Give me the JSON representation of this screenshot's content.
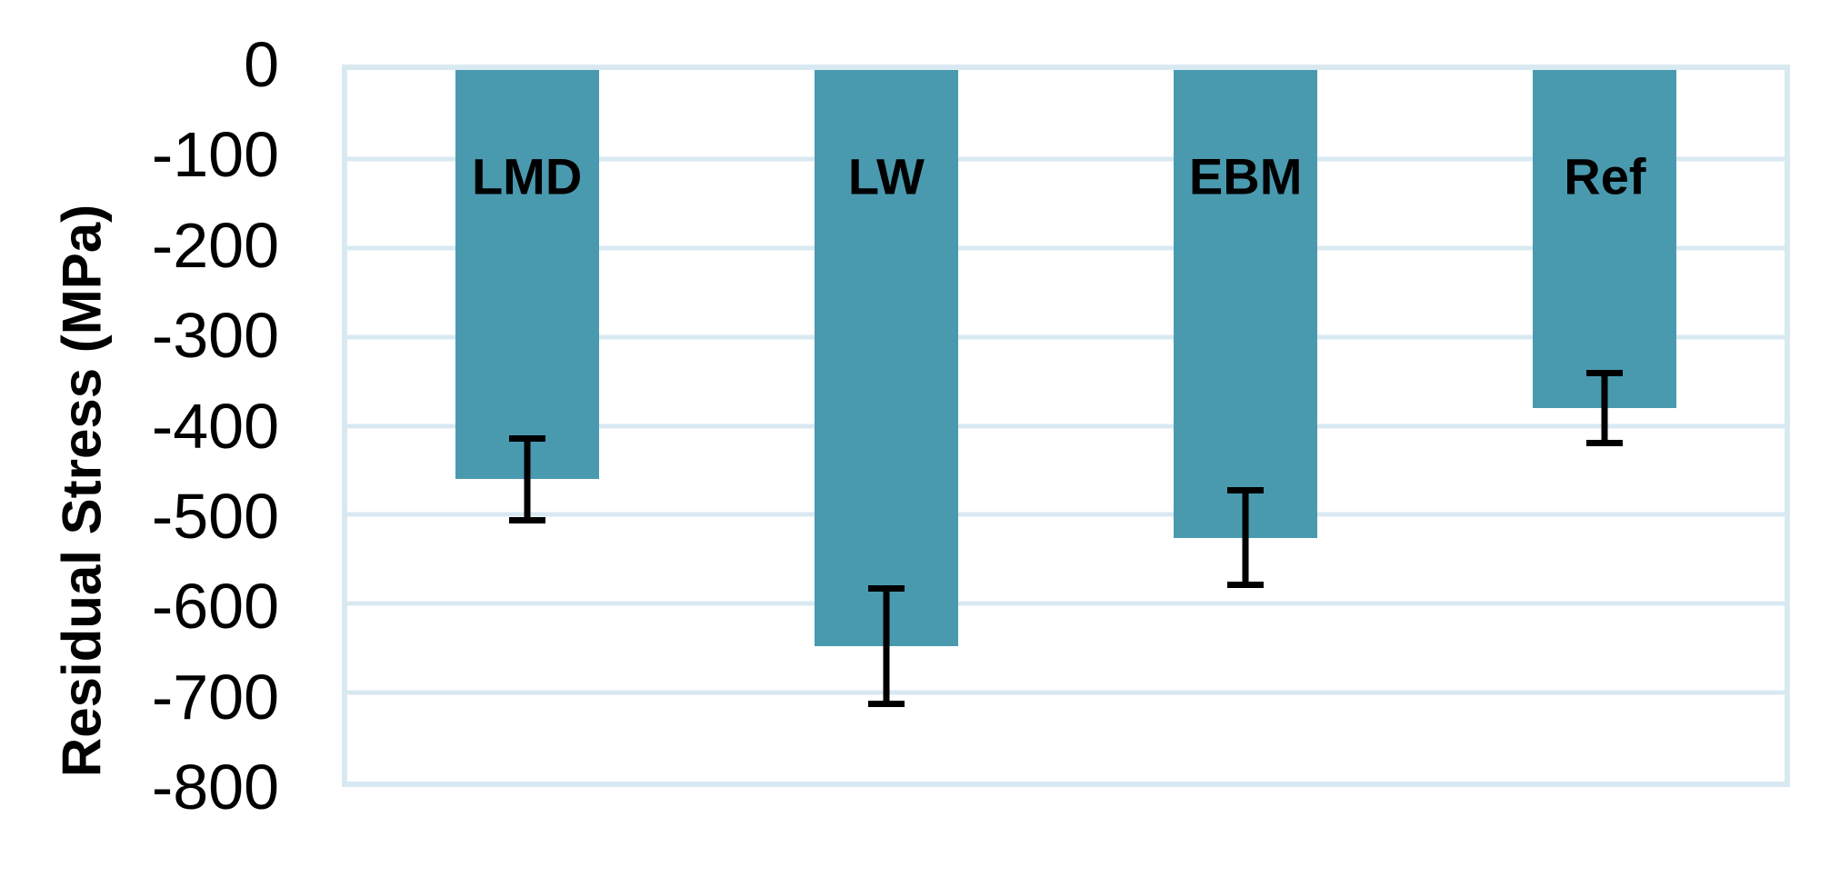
{
  "chart_data": {
    "type": "bar",
    "title": "",
    "xlabel": "",
    "ylabel": "Residual Stress (MPa)",
    "categories": [
      "LMD",
      "LW",
      "EBM",
      "Ref"
    ],
    "series": [
      {
        "name": "Residual Stress",
        "values": [
          -460,
          -648,
          -526,
          -380
        ],
        "errors": [
          46,
          65,
          53,
          39
        ]
      }
    ],
    "ylim": [
      0,
      -800
    ],
    "yticks": [
      0,
      -100,
      -200,
      -300,
      -400,
      -500,
      -600,
      -700,
      -800
    ],
    "ytick_labels": [
      "0",
      "-100",
      "-200",
      "-300",
      "-400",
      "-500",
      "-600",
      "-700",
      "-800"
    ],
    "grid": "horizontal",
    "legend": "none",
    "category_labels_position": "inside-top",
    "category_label_level": -120,
    "bar_color": "#4A9AAF",
    "gridline_color": "#D9E9F2",
    "error_bar_color": "#000000",
    "text_color": "#000000",
    "background_color": "#FFFFFF"
  }
}
